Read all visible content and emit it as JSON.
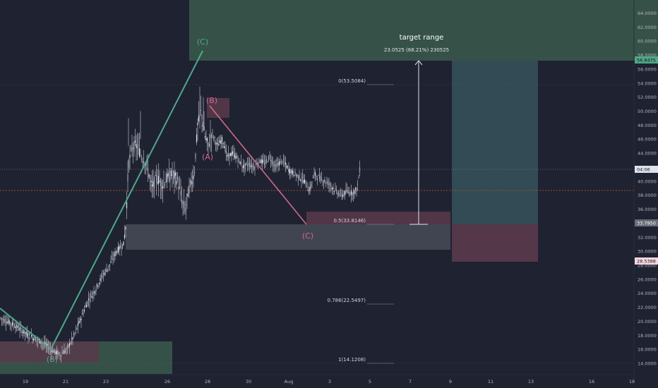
{
  "chart_data": {
    "type": "candlestick",
    "y_ticks": [
      "64.0000",
      "62.0000",
      "60.0000",
      "58.0000",
      "56.0000",
      "54.0000",
      "52.0000",
      "50.0000",
      "48.0000",
      "46.0000",
      "44.0000",
      "42.0000",
      "40.0000",
      "38.0000",
      "36.0000",
      "34.0000",
      "32.0000",
      "30.0000",
      "28.0000",
      "26.0000",
      "24.0000",
      "22.0000",
      "20.0000",
      "18.0000",
      "16.0000",
      "14.0000"
    ],
    "x_ticks": [
      "19",
      "21",
      "23",
      "26",
      "28",
      "30",
      "Aug",
      "3",
      "5",
      "7",
      "9",
      "11",
      "13",
      "16",
      "18"
    ],
    "price_tags": [
      {
        "text": "56.8475",
        "color": "#4fa88a",
        "text_color": "#0e1a14"
      },
      {
        "text": "04:06",
        "color": "#e0e3eb",
        "text_color": "#131722"
      },
      {
        "text": "33.7950",
        "color": "#6a6d78",
        "text_color": "#ffffff"
      },
      {
        "text": "28.5388",
        "color": "#f7d7e0",
        "text_color": "#131722"
      }
    ],
    "wave_labels_green": [
      "(C)",
      "(B)"
    ],
    "wave_labels_pink": [
      "(B)",
      "(A)",
      "(C)"
    ],
    "fib_levels": [
      {
        "text": "0(53.5084)",
        "price": 53.5084
      },
      {
        "text": "0.5(33.8146)",
        "price": 33.8146
      },
      {
        "text": "0.786(22.5497)",
        "price": 22.5497
      },
      {
        "text": "1(14.1208)",
        "price": 14.1208
      }
    ],
    "target_title": "target range",
    "target_subtitle": "23.0525 (68.21%) 230525",
    "colors": {
      "background": "#1f2231",
      "candle": "#d1d4dc",
      "green_line": "#4fa88a",
      "pink_line": "#d06a8a",
      "green_zone": "#3b5a4c",
      "pink_zone": "#5a3a4c",
      "gray_zone": "#4a4d5a",
      "teal_zone": "#34505a"
    }
  }
}
